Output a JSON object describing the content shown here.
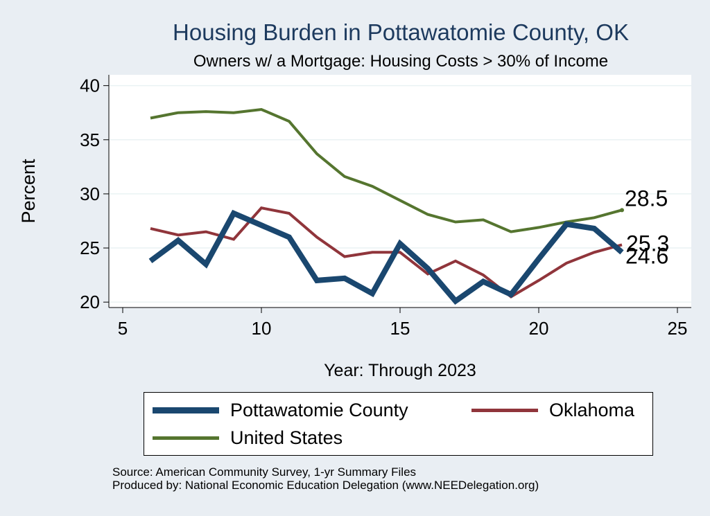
{
  "chart_data": {
    "type": "line",
    "title": "Housing Burden in Pottawatomie County, OK",
    "subtitle": "Owners w/ a Mortgage: Housing Costs > 30% of Income",
    "xlabel": "Year: Through 2023",
    "ylabel": "Percent",
    "xlim": [
      4.5,
      25.5
    ],
    "ylim": [
      19.5,
      41.0
    ],
    "x_ticks": [
      5,
      10,
      15,
      20,
      25
    ],
    "y_ticks": [
      20,
      25,
      30,
      35,
      40
    ],
    "grid": true,
    "legend_position": "bottom",
    "x": [
      6,
      7,
      8,
      9,
      10,
      11,
      12,
      13,
      14,
      15,
      16,
      17,
      18,
      19,
      20,
      21,
      22,
      23
    ],
    "series": [
      {
        "name": "Pottawatomie County",
        "color": "#1a476f",
        "width": 8,
        "values": [
          23.8,
          25.7,
          23.5,
          28.2,
          27.1,
          26.0,
          22.0,
          22.2,
          20.8,
          25.4,
          23.1,
          20.1,
          21.9,
          20.7,
          24.0,
          27.2,
          26.8,
          24.6
        ],
        "end_label": "24.6"
      },
      {
        "name": "Oklahoma",
        "color": "#90353b",
        "width": 4,
        "values": [
          26.8,
          26.2,
          26.5,
          25.8,
          28.7,
          28.2,
          26.0,
          24.2,
          24.6,
          24.6,
          22.6,
          23.8,
          22.5,
          20.5,
          22.0,
          23.6,
          24.6,
          25.3
        ],
        "end_label": "25.3"
      },
      {
        "name": "United States",
        "color": "#55752f",
        "width": 4,
        "values": [
          37.0,
          37.5,
          37.6,
          37.5,
          37.8,
          36.7,
          33.7,
          31.6,
          30.7,
          29.4,
          28.1,
          27.4,
          27.6,
          26.5,
          26.9,
          27.4,
          27.8,
          28.5
        ],
        "end_label": "28.5"
      }
    ]
  },
  "source_line": "Source: American Community Survey, 1-yr Summary Files",
  "produced_line": "Produced by: National Economic Education Delegation (www.NEEDelegation.org)"
}
